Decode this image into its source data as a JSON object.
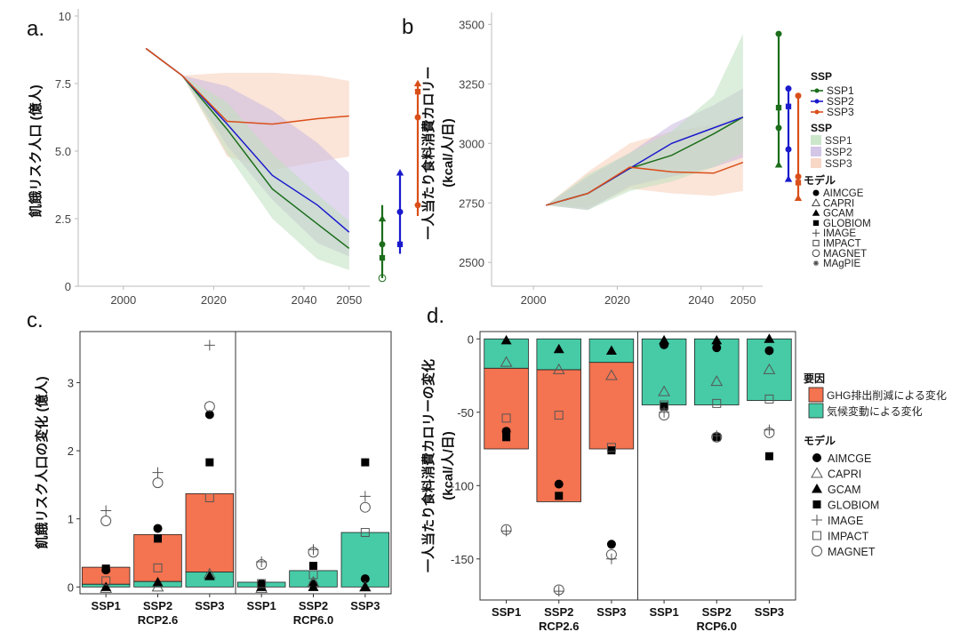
{
  "colors": {
    "ssp1": "#1b6e1b",
    "ssp2": "#1a1acc",
    "ssp3": "#d94f1a",
    "band_ssp1": "#bfe0bf",
    "band_ssp2": "#c8b8e0",
    "band_ssp3": "#f8cdb8",
    "ghg": "#f47350",
    "climate": "#46cba6"
  },
  "chart_data": [
    {
      "panel": "a.",
      "type": "line",
      "ylabel": "飢餓リスク人口 (億人)",
      "ylim": [
        0,
        10
      ],
      "xlim": [
        1990,
        2053
      ],
      "y_ticks": [
        "0",
        "2.5",
        "5.0",
        "7.5",
        "10"
      ],
      "x_ticks": [
        "2000",
        "2020",
        "2040",
        "2050"
      ],
      "series": [
        {
          "key": "ssp1",
          "x": [
            2005,
            2013,
            2023,
            2033,
            2043,
            2050
          ],
          "values": [
            8.8,
            7.8,
            5.8,
            3.6,
            2.3,
            1.4
          ],
          "band_lo": [
            8.8,
            7.8,
            4.9,
            2.5,
            1.0,
            0.6
          ],
          "band_hi": [
            8.8,
            7.8,
            6.8,
            4.9,
            3.4,
            2.4
          ]
        },
        {
          "key": "ssp2",
          "x": [
            2005,
            2013,
            2023,
            2033,
            2043,
            2050
          ],
          "values": [
            8.8,
            7.8,
            6.0,
            4.1,
            3.0,
            2.0
          ],
          "band_lo": [
            8.8,
            7.8,
            5.2,
            3.2,
            1.6,
            1.1
          ],
          "band_hi": [
            8.8,
            7.8,
            7.4,
            6.5,
            5.3,
            4.2
          ]
        },
        {
          "key": "ssp3",
          "x": [
            2005,
            2013,
            2023,
            2033,
            2043,
            2050
          ],
          "values": [
            8.8,
            7.8,
            6.1,
            6.0,
            6.2,
            6.3
          ],
          "band_lo": [
            8.8,
            7.8,
            4.8,
            4.3,
            4.6,
            4.8
          ],
          "band_hi": [
            8.8,
            7.8,
            7.9,
            7.9,
            7.8,
            7.6
          ]
        }
      ],
      "ranges_2050": [
        {
          "key": "ssp1",
          "min": 0.3,
          "max": 3.0,
          "points": [
            [
              "triangle",
              2.5
            ],
            [
              "dot",
              1.55
            ],
            [
              "square",
              1.05
            ],
            [
              "open-circle",
              0.3
            ]
          ]
        },
        {
          "key": "ssp2",
          "min": 1.2,
          "max": 4.2,
          "points": [
            [
              "triangle",
              4.2
            ],
            [
              "dot",
              2.75
            ],
            [
              "square",
              1.55
            ]
          ]
        },
        {
          "key": "ssp3",
          "min": 2.6,
          "max": 7.5,
          "points": [
            [
              "triangle",
              7.5
            ],
            [
              "square",
              7.2
            ],
            [
              "dot",
              6.25
            ],
            [
              "dot",
              3.0
            ]
          ]
        }
      ]
    },
    {
      "panel": "b",
      "type": "line",
      "ylabel": "一人当たり食料消費カロリー",
      "ylabel2": "(kcal/人/日)",
      "ylim": [
        2400,
        3520
      ],
      "xlim": [
        1990,
        2053
      ],
      "y_ticks": [
        "2500",
        "2750",
        "3000",
        "3250",
        "3500"
      ],
      "x_ticks": [
        "2000",
        "2020",
        "2040",
        "2050"
      ],
      "series": [
        {
          "key": "ssp1",
          "x": [
            2003,
            2013,
            2023,
            2033,
            2043,
            2050
          ],
          "values": [
            2740,
            2790,
            2895,
            2950,
            3040,
            3110
          ],
          "band_lo": [
            2740,
            2720,
            2800,
            2840,
            2900,
            2960
          ],
          "band_hi": [
            2740,
            2870,
            2960,
            3050,
            3200,
            3460
          ]
        },
        {
          "key": "ssp2",
          "x": [
            2003,
            2013,
            2023,
            2033,
            2043,
            2050
          ],
          "values": [
            2740,
            2790,
            2895,
            3000,
            3065,
            3110
          ],
          "band_lo": [
            2740,
            2720,
            2820,
            2860,
            2900,
            2940
          ],
          "band_hi": [
            2740,
            2860,
            2960,
            3080,
            3160,
            3230
          ]
        },
        {
          "key": "ssp3",
          "x": [
            2003,
            2013,
            2023,
            2033,
            2043,
            2050
          ],
          "values": [
            2740,
            2790,
            2900,
            2880,
            2875,
            2920
          ],
          "band_lo": [
            2740,
            2730,
            2810,
            2790,
            2780,
            2800
          ],
          "band_hi": [
            2740,
            2880,
            3000,
            3050,
            3080,
            3120
          ]
        }
      ],
      "ranges_2050": [
        {
          "key": "ssp1",
          "min": 2910,
          "max": 3460,
          "points": [
            [
              "dot",
              3460
            ],
            [
              "square",
              3150
            ],
            [
              "dot",
              3065
            ],
            [
              "triangle",
              2910
            ]
          ]
        },
        {
          "key": "ssp2",
          "min": 2850,
          "max": 3230,
          "points": [
            [
              "dot",
              3230
            ],
            [
              "square",
              3155
            ],
            [
              "dot",
              2975
            ],
            [
              "triangle",
              2850
            ]
          ]
        },
        {
          "key": "ssp3",
          "min": 2770,
          "max": 3200,
          "points": [
            [
              "dot",
              3200
            ],
            [
              "dot",
              2860
            ],
            [
              "square",
              2835
            ],
            [
              "triangle",
              2770
            ]
          ]
        }
      ]
    },
    {
      "panel": "c.",
      "type": "bar",
      "ylabel": "飢餓リスク人口の変化 (億人)",
      "ylim": [
        -0.1,
        3.75
      ],
      "y_ticks": [
        "0",
        "1",
        "2",
        "3"
      ],
      "categories": [
        "SSP1",
        "SSP2",
        "SSP3",
        "SSP1",
        "SSP2",
        "SSP3"
      ],
      "group_labels": [
        {
          "label": "RCP2.6",
          "index": 1
        },
        {
          "label": "RCP6.0",
          "index": 4
        }
      ],
      "climate": [
        0.04,
        0.08,
        0.22,
        0.07,
        0.24,
        0.8
      ],
      "total": [
        0.29,
        0.77,
        1.37,
        0.07,
        0.24,
        0.8
      ],
      "models": [
        [
          [
            "AIMCGE",
            0.25
          ],
          [
            "CAPRI",
            -0.02
          ],
          [
            "GCAM",
            0.0
          ],
          [
            "GLOBIOM",
            0.27
          ],
          [
            "IMAGE",
            1.12
          ],
          [
            "IMPACT",
            0.09
          ],
          [
            "MAGNET",
            0.97
          ]
        ],
        [
          [
            "AIMCGE",
            0.86
          ],
          [
            "CAPRI",
            0.0
          ],
          [
            "GCAM",
            0.07
          ],
          [
            "GLOBIOM",
            0.71
          ],
          [
            "IMAGE",
            1.68
          ],
          [
            "IMPACT",
            0.28
          ],
          [
            "MAGNET",
            1.53
          ]
        ],
        [
          [
            "AIMCGE",
            2.53
          ],
          [
            "CAPRI",
            0.19
          ],
          [
            "GCAM",
            0.16
          ],
          [
            "GLOBIOM",
            1.83
          ],
          [
            "IMAGE",
            3.55
          ],
          [
            "IMPACT",
            1.31
          ],
          [
            "MAGNET",
            2.65
          ]
        ],
        [
          [
            "AIMCGE",
            0.05
          ],
          [
            "CAPRI",
            -0.02
          ],
          [
            "GCAM",
            0.0
          ],
          [
            "GLOBIOM",
            0.01
          ],
          [
            "IMAGE",
            0.37
          ],
          [
            "IMPACT",
            0.05
          ],
          [
            "MAGNET",
            0.33
          ]
        ],
        [
          [
            "AIMCGE",
            0.04
          ],
          [
            "CAPRI",
            0.07
          ],
          [
            "GCAM",
            0.0
          ],
          [
            "GLOBIOM",
            0.31
          ],
          [
            "IMAGE",
            0.55
          ],
          [
            "IMPACT",
            0.18
          ],
          [
            "MAGNET",
            0.51
          ]
        ],
        [
          [
            "AIMCGE",
            0.12
          ],
          [
            "CAPRI",
            0.0
          ],
          [
            "GCAM",
            0.0
          ],
          [
            "GLOBIOM",
            1.83
          ],
          [
            "IMAGE",
            1.33
          ],
          [
            "IMPACT",
            0.8
          ],
          [
            "MAGNET",
            1.17
          ]
        ]
      ]
    },
    {
      "panel": "d.",
      "type": "bar",
      "ylabel": "一人当たり食料消費カロリーの変化",
      "ylabel2": "(kcal/人/日)",
      "ylim": [
        -178,
        5
      ],
      "y_ticks": [
        "0",
        "-50",
        "-100",
        "-150"
      ],
      "categories": [
        "SSP1",
        "SSP2",
        "SSP3",
        "SSP1",
        "SSP2",
        "SSP3"
      ],
      "group_labels": [
        {
          "label": "RCP2.6",
          "index": 1
        },
        {
          "label": "RCP6.0",
          "index": 4
        }
      ],
      "climate": [
        -20,
        -21,
        -16,
        -45,
        -45,
        -42
      ],
      "total": [
        -75,
        -111,
        -75,
        -45,
        -45,
        -42
      ],
      "models": [
        [
          [
            "AIMCGE",
            -63
          ],
          [
            "CAPRI",
            -16
          ],
          [
            "GCAM",
            -1
          ],
          [
            "GLOBIOM",
            -67
          ],
          [
            "IMAGE",
            -131
          ],
          [
            "IMPACT",
            -54
          ],
          [
            "MAGNET",
            -130
          ]
        ],
        [
          [
            "AIMCGE",
            -99
          ],
          [
            "CAPRI",
            -21
          ],
          [
            "GCAM",
            -7
          ],
          [
            "GLOBIOM",
            -107
          ],
          [
            "IMAGE",
            -172
          ],
          [
            "IMPACT",
            -52
          ],
          [
            "MAGNET",
            -171
          ]
        ],
        [
          [
            "AIMCGE",
            -140
          ],
          [
            "CAPRI",
            -25
          ],
          [
            "GCAM",
            -8
          ],
          [
            "GLOBIOM",
            -76
          ],
          [
            "IMAGE",
            -150
          ],
          [
            "IMPACT",
            -74
          ],
          [
            "MAGNET",
            -147
          ]
        ],
        [
          [
            "AIMCGE",
            -4
          ],
          [
            "CAPRI",
            -36
          ],
          [
            "GCAM",
            -1
          ],
          [
            "GLOBIOM",
            -46
          ],
          [
            "IMAGE",
            -50
          ],
          [
            "IMPACT",
            -45
          ],
          [
            "MAGNET",
            -52
          ]
        ],
        [
          [
            "AIMCGE",
            -6
          ],
          [
            "CAPRI",
            -29
          ],
          [
            "GCAM",
            -1
          ],
          [
            "GLOBIOM",
            -67
          ],
          [
            "IMAGE",
            -66
          ],
          [
            "IMPACT",
            -44
          ],
          [
            "MAGNET",
            -67
          ]
        ],
        [
          [
            "AIMCGE",
            -8
          ],
          [
            "CAPRI",
            -21
          ],
          [
            "GCAM",
            0
          ],
          [
            "GLOBIOM",
            -80
          ],
          [
            "IMAGE",
            -62
          ],
          [
            "IMPACT",
            -41
          ],
          [
            "MAGNET",
            -64
          ]
        ]
      ]
    }
  ],
  "legend_top": {
    "ssp_line_title": "SSP",
    "ssp_line_items": [
      "SSP1",
      "SSP2",
      "SSP3"
    ],
    "ssp_band_title": "SSP",
    "ssp_band_items": [
      "SSP1",
      "SSP2",
      "SSP3"
    ],
    "model_title": "モデル",
    "models": [
      "AIMCGE",
      "CAPRI",
      "GCAM",
      "GLOBIOM",
      "IMAGE",
      "IMPACT",
      "MAGNET",
      "MAgPIE"
    ]
  },
  "legend_bottom": {
    "factor_title": "要因",
    "factor_items": [
      {
        "label": "GHG排出削減による変化",
        "key": "ghg"
      },
      {
        "label": "気候変動による変化",
        "key": "climate"
      }
    ],
    "model_title": "モデル",
    "models": [
      "AIMCGE",
      "CAPRI",
      "GCAM",
      "GLOBIOM",
      "IMAGE",
      "IMPACT",
      "MAGNET"
    ]
  }
}
